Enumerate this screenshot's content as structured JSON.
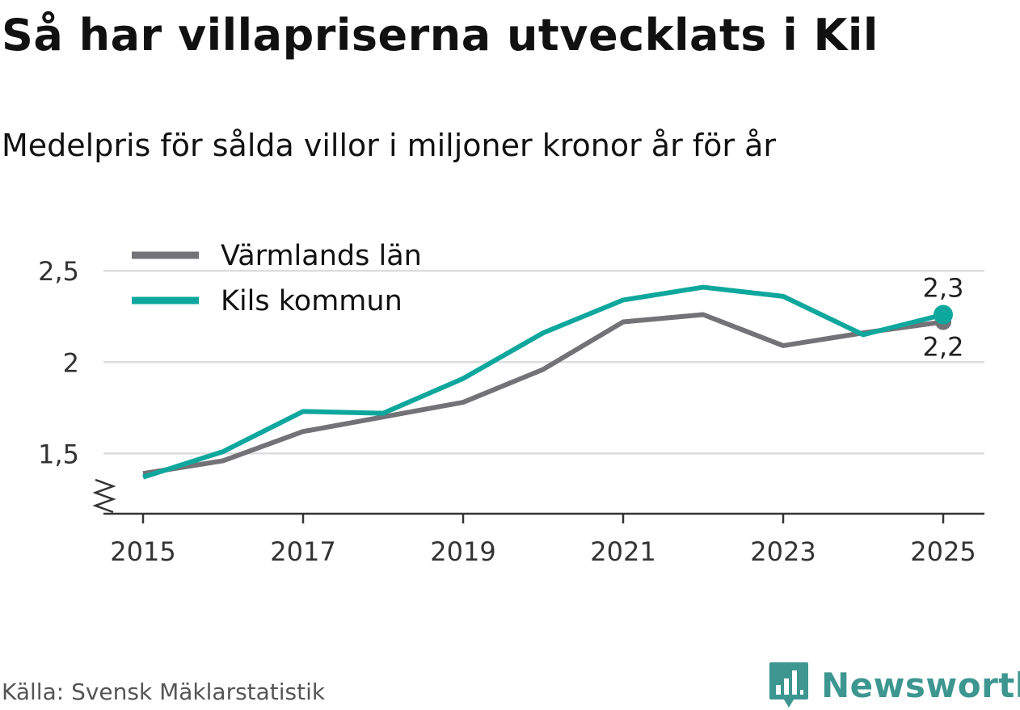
{
  "title": "Så har villapriserna utvecklats i Kil",
  "subtitle": "Medelpris för sålda villor i miljoner kronor år för år",
  "source": "Källa: Svensk Mäklarstatistik",
  "logo_text": "Newsworthy",
  "colors": {
    "varmland": "#727277",
    "kil": "#0ea79d",
    "grid": "#dddddd",
    "axis": "#333333",
    "logo": "#3d9690"
  },
  "chart_data": {
    "type": "line",
    "title": "Så har villapriserna utvecklats i Kil",
    "xlabel": "",
    "ylabel": "",
    "x": [
      2015,
      2016,
      2017,
      2018,
      2019,
      2020,
      2021,
      2022,
      2023,
      2024,
      2025
    ],
    "ylim": [
      1.17,
      2.7
    ],
    "y_ticks": [
      1.5,
      2,
      2.5
    ],
    "y_tick_labels": [
      "1,5",
      "2",
      "2,5"
    ],
    "x_ticks": [
      2015,
      2017,
      2019,
      2021,
      2023,
      2025
    ],
    "x_tick_labels": [
      "2015",
      "2017",
      "2019",
      "2021",
      "2023",
      "2025"
    ],
    "legend_position": "top-left",
    "series": [
      {
        "name": "Värmlands län",
        "color_key": "varmland",
        "values": [
          1.39,
          1.46,
          1.62,
          1.7,
          1.78,
          1.96,
          2.22,
          2.26,
          2.09,
          2.16,
          2.22
        ],
        "end_label": "2,2"
      },
      {
        "name": "Kils kommun",
        "color_key": "kil",
        "values": [
          1.37,
          1.51,
          1.73,
          1.72,
          1.91,
          2.16,
          2.34,
          2.41,
          2.36,
          2.15,
          2.26
        ],
        "end_label": "2,3"
      }
    ]
  }
}
